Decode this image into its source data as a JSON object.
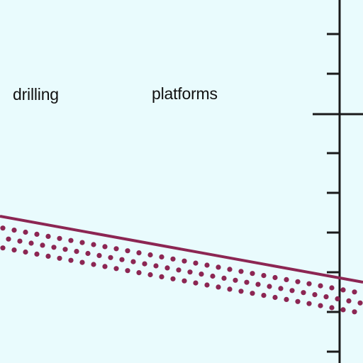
{
  "labels": {
    "left": "drilling",
    "right": "platforms"
  },
  "colors": {
    "background": "#e9fbfd",
    "seafloor": "#8c2653",
    "axis": "#1a1a1a",
    "text": "#111111"
  },
  "axis": {
    "minor_tick_count": 9,
    "major_tick_count": 1
  }
}
